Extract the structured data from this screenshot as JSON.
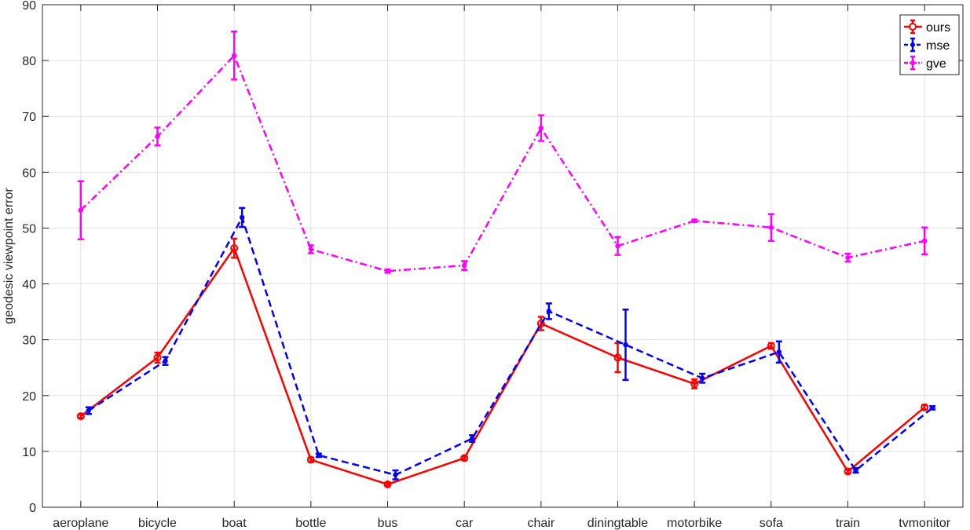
{
  "chart_data": {
    "type": "line",
    "title": "",
    "xlabel": "",
    "ylabel": "geodesic viewpoint error",
    "ylim": [
      0,
      90
    ],
    "yticks": [
      "0",
      "10",
      "20",
      "30",
      "40",
      "50",
      "60",
      "70",
      "80",
      "90"
    ],
    "grid": true,
    "legend_position": "top-right",
    "categories": [
      "aeroplane",
      "bicycle",
      "boat",
      "bottle",
      "bus",
      "car",
      "chair",
      "diningtable",
      "motorbike",
      "sofa",
      "train",
      "tvmonitor"
    ],
    "series": [
      {
        "name": "ours",
        "color": "#ff0000",
        "line_style": "solid",
        "marker": "circle",
        "values": [
          16.3,
          26.8,
          46.4,
          8.5,
          4.1,
          8.8,
          32.9,
          26.8,
          22.1,
          28.9,
          6.4,
          17.9
        ],
        "errors": [
          0.3,
          0.9,
          1.7,
          0.4,
          0.3,
          0.3,
          1.2,
          2.6,
          0.8,
          0.5,
          0.3,
          0.4
        ]
      },
      {
        "name": "mse",
        "color": "#0000ff",
        "line_style": "dashed",
        "marker": "point",
        "values": [
          17.3,
          26.2,
          51.9,
          9.3,
          5.8,
          12.3,
          35.1,
          29.1,
          23.1,
          27.8,
          6.6,
          17.8
        ],
        "errors": [
          0.6,
          0.7,
          1.7,
          0.3,
          0.8,
          0.6,
          1.4,
          6.3,
          0.8,
          1.9,
          0.4,
          0.3
        ]
      },
      {
        "name": "gve",
        "color": "#ff00ff",
        "line_style": "dashdot",
        "marker": "point",
        "values": [
          53.2,
          66.4,
          80.9,
          46.2,
          42.3,
          43.3,
          67.9,
          46.8,
          51.3,
          50.1,
          44.7,
          47.7
        ],
        "errors": [
          5.2,
          1.6,
          4.3,
          0.7,
          0.3,
          0.8,
          2.3,
          1.6,
          0.2,
          2.4,
          0.7,
          2.4
        ]
      }
    ]
  }
}
